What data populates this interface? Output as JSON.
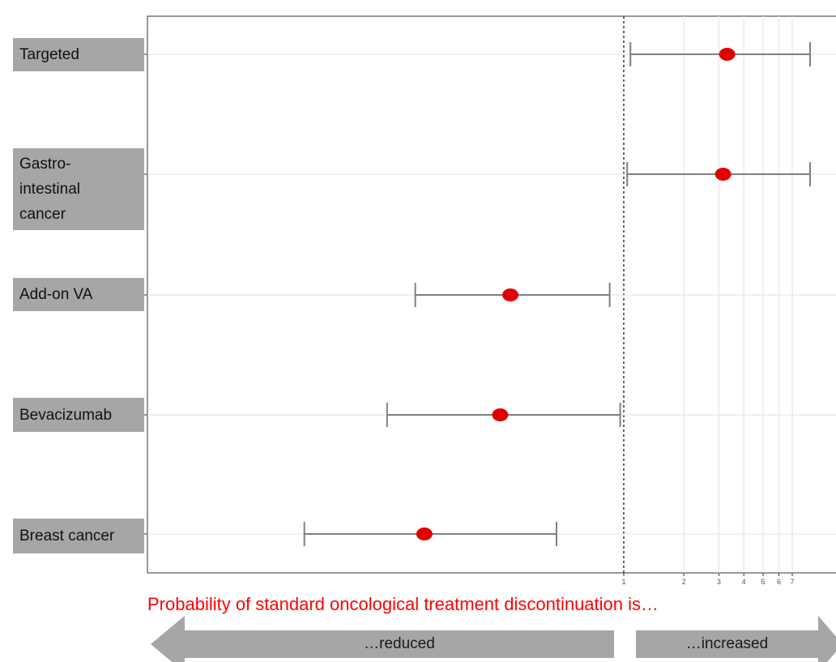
{
  "chart_data": {
    "type": "forest",
    "xscale": "log",
    "xlim": [
      0.02,
      10
    ],
    "reference_line": 1,
    "x_ticks": [
      1,
      2,
      3,
      4,
      5,
      6,
      7
    ],
    "x_tick_labels": [
      "1",
      "2",
      "3",
      "4",
      "5",
      "6",
      "7"
    ],
    "grid": true,
    "rows": [
      {
        "label": "Targeted",
        "estimate": 3.3,
        "lower": 1.08,
        "upper": 8.6
      },
      {
        "label": "Gastro-\nintestinal\ncancer",
        "estimate": 3.15,
        "lower": 1.04,
        "upper": 8.6
      },
      {
        "label": "Add-on VA",
        "estimate": 0.27,
        "lower": 0.09,
        "upper": 0.85
      },
      {
        "label": "Bevacizumab",
        "estimate": 0.24,
        "lower": 0.065,
        "upper": 0.96
      },
      {
        "label": "Breast cancer",
        "estimate": 0.1,
        "lower": 0.025,
        "upper": 0.46
      }
    ],
    "point_color": "#e00000",
    "interval_color": "#7f7f7f"
  },
  "caption": "Probability of standard oncological treatment discontinuation is…",
  "arrows": {
    "left_label": "…reduced",
    "right_label": "…increased",
    "color": "#a6a6a6"
  }
}
